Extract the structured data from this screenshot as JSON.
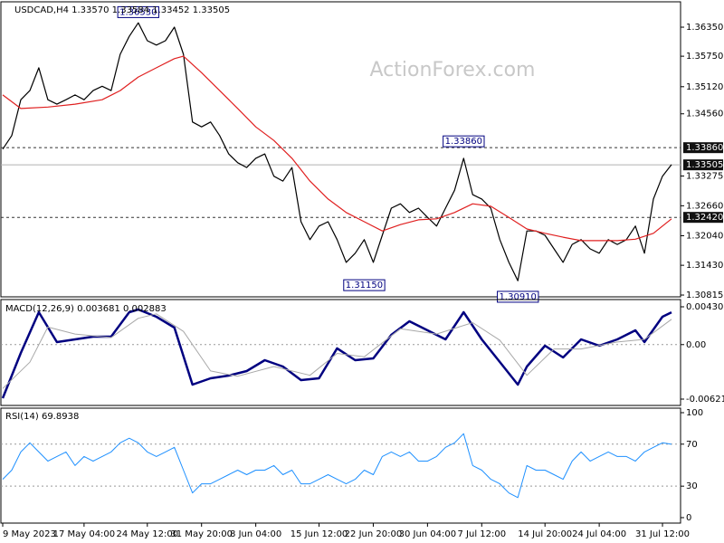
{
  "chart_data": [
    {
      "type": "line",
      "title": "USDCAD,H4 1.33570 1.33584 1.33452 1.33505",
      "watermark": "ActionForex.com",
      "xlim": [
        -0.2,
        75
      ],
      "ylim": [
        1.30778,
        1.36874
      ],
      "yticks": [
        {
          "value": 1.3635,
          "label": "1.36350"
        },
        {
          "value": 1.3575,
          "label": "1.35750"
        },
        {
          "value": 1.3512,
          "label": "1.35120"
        },
        {
          "value": 1.3456,
          "label": "1.34560"
        },
        {
          "value": 1.33275,
          "label": "1.33275"
        },
        {
          "value": 1.3266,
          "label": "1.32660"
        },
        {
          "value": 1.3204,
          "label": "1.32040"
        },
        {
          "value": 1.3143,
          "label": "1.31430"
        },
        {
          "value": 1.30815,
          "label": "1.30815"
        }
      ],
      "hlines": [
        {
          "value": 1.3386,
          "label": "1.33860",
          "style": "dashed"
        },
        {
          "value": 1.3242,
          "label": "1.32420",
          "style": "dashed"
        },
        {
          "value": 1.33505,
          "label": "1.33505",
          "style": "solid"
        }
      ],
      "annotations": [
        {
          "x": 15,
          "value": 1.3653,
          "label": "1.36530",
          "position": "above"
        },
        {
          "x": 51,
          "value": 1.3386,
          "label": "1.33860",
          "position": "above"
        },
        {
          "x": 40,
          "value": 1.3115,
          "label": "1.31150",
          "position": "below"
        },
        {
          "x": 57,
          "value": 1.3091,
          "label": "1.30910",
          "position": "below"
        }
      ],
      "series": [
        {
          "color": "#000000",
          "x": [
            0,
            1,
            2,
            3,
            4,
            5,
            6,
            7,
            8,
            9,
            10,
            11,
            12,
            13,
            14,
            15,
            16,
            17,
            18,
            19,
            20,
            21,
            22,
            23,
            24,
            25,
            26,
            27,
            28,
            29,
            30,
            31,
            32,
            33,
            34,
            35,
            36,
            37,
            38,
            39,
            40,
            41,
            42,
            43,
            44,
            45,
            46,
            47,
            48,
            49,
            50,
            51,
            52,
            53,
            54,
            55,
            56,
            57,
            58,
            59,
            60,
            61,
            62,
            63,
            64,
            65,
            66,
            67,
            68,
            69,
            70,
            71,
            72,
            73,
            74
          ],
          "values": [
            1.3383,
            1.3411,
            1.3485,
            1.3504,
            1.3551,
            1.3485,
            1.3476,
            1.3485,
            1.3495,
            1.3485,
            1.3504,
            1.3513,
            1.3504,
            1.3579,
            1.3616,
            1.3644,
            1.3607,
            1.3598,
            1.3607,
            1.3635,
            1.3579,
            1.3439,
            1.3429,
            1.3439,
            1.3411,
            1.3373,
            1.3355,
            1.3345,
            1.3364,
            1.3373,
            1.3327,
            1.3317,
            1.3345,
            1.3233,
            1.3196,
            1.3224,
            1.3233,
            1.3196,
            1.3149,
            1.3168,
            1.3196,
            1.3149,
            1.3205,
            1.3261,
            1.327,
            1.3252,
            1.3261,
            1.3242,
            1.3224,
            1.3261,
            1.3298,
            1.3364,
            1.3289,
            1.328,
            1.3261,
            1.3196,
            1.3149,
            1.3111,
            1.3214,
            1.3214,
            1.3205,
            1.3177,
            1.3149,
            1.3186,
            1.3196,
            1.3177,
            1.3168,
            1.3196,
            1.3186,
            1.3196,
            1.3224,
            1.3168,
            1.328,
            1.3327,
            1.3351
          ]
        },
        {
          "color": "#e02020",
          "x": [
            0,
            2,
            5,
            8,
            11,
            13,
            15,
            17,
            19,
            20,
            22,
            24,
            26,
            28,
            30,
            32,
            34,
            36,
            38,
            40,
            42,
            44,
            46,
            48,
            50,
            52,
            54,
            56,
            58,
            60,
            62,
            64,
            66,
            68,
            70,
            72,
            74
          ],
          "values": [
            1.3495,
            1.3467,
            1.347,
            1.3476,
            1.3485,
            1.3504,
            1.3532,
            1.3551,
            1.357,
            1.3575,
            1.3541,
            1.3504,
            1.3467,
            1.3429,
            1.3401,
            1.3364,
            1.3317,
            1.328,
            1.3252,
            1.3233,
            1.3214,
            1.3227,
            1.3237,
            1.3239,
            1.3252,
            1.327,
            1.3265,
            1.3242,
            1.3218,
            1.3209,
            1.3201,
            1.3194,
            1.3194,
            1.3194,
            1.3197,
            1.3209,
            1.3239
          ]
        }
      ]
    },
    {
      "type": "line",
      "title": "MACD(12,26,9) 0.003681 0.002883",
      "xlim": [
        -0.2,
        75
      ],
      "ylim": [
        -0.006932,
        0.005132
      ],
      "yticks": [
        {
          "value": 0.004307,
          "label": "0.004307"
        },
        {
          "value": 0,
          "label": "0.00"
        },
        {
          "value": -0.00621,
          "label": "-0.00621"
        }
      ],
      "levels": [
        0
      ],
      "series": [
        {
          "color": "#000080",
          "width": 2.5,
          "x": [
            0,
            2,
            4,
            6,
            8,
            10,
            12,
            14,
            15,
            17,
            19,
            21,
            23,
            25,
            27,
            29,
            31,
            33,
            35,
            37,
            39,
            41,
            43,
            45,
            47,
            49,
            51,
            53,
            55,
            57,
            58,
            60,
            62,
            64,
            66,
            68,
            70,
            71,
            73,
            74
          ],
          "values": [
            -0.00611,
            -0.00095,
            0.00369,
            0.00029,
            0.0006,
            0.0009,
            0.0009,
            0.00369,
            0.004,
            0.00317,
            0.00194,
            -0.00456,
            -0.00384,
            -0.00353,
            -0.00301,
            -0.00178,
            -0.0025,
            -0.00404,
            -0.00384,
            -0.00043,
            -0.00178,
            -0.00157,
            0.00111,
            0.00266,
            0.00163,
            0.0006,
            0.00369,
            0.0006,
            -0.00198,
            -0.00456,
            -0.0025,
            -0.00013,
            -0.00147,
            0.0006,
            -0.00013,
            0.0006,
            0.00163,
            0.00029,
            0.00317,
            0.00368
          ]
        },
        {
          "color": "#a8a8a8",
          "width": 1,
          "x": [
            0,
            3,
            5,
            8,
            12,
            15,
            17,
            20,
            23,
            26,
            30,
            34,
            37,
            40,
            44,
            48,
            52,
            55,
            58,
            61,
            64,
            68,
            71,
            74
          ],
          "values": [
            -0.005,
            -0.002,
            0.002,
            0.0012,
            0.0008,
            0.003,
            0.0035,
            0.0015,
            -0.003,
            -0.0036,
            -0.0025,
            -0.0035,
            -0.001,
            -0.0014,
            0.0018,
            0.0012,
            0.0025,
            0.0005,
            -0.0035,
            -0.0005,
            -0.0005,
            0.0003,
            0.0006,
            0.00288
          ]
        }
      ]
    },
    {
      "type": "line",
      "title": "RSI(14) 69.8938",
      "xlim": [
        -0.2,
        75
      ],
      "ylim": [
        -5.2,
        104.3
      ],
      "yticks": [
        100,
        70,
        30,
        0
      ],
      "levels": [
        70,
        30
      ],
      "xticks": [
        {
          "value": 0,
          "label": "9 May 2023"
        },
        {
          "value": 9,
          "label": "17 May 04:00"
        },
        {
          "value": 16,
          "label": "24 May 12:00"
        },
        {
          "value": 22,
          "label": "31 May 20:00"
        },
        {
          "value": 28,
          "label": "8 Jun 04:00"
        },
        {
          "value": 35,
          "label": "15 Jun 12:00"
        },
        {
          "value": 41,
          "label": "22 Jun 20:00"
        },
        {
          "value": 47,
          "label": "30 Jun 04:00"
        },
        {
          "value": 53,
          "label": "7 Jul 12:00"
        },
        {
          "value": 60,
          "label": "14 Jul 20:00"
        },
        {
          "value": 66,
          "label": "24 Jul 04:00"
        },
        {
          "value": 73,
          "label": "31 Jul 12:00"
        }
      ],
      "series": [
        {
          "color": "#1e90ff",
          "width": 1,
          "x": [
            0,
            1,
            2,
            3,
            4,
            5,
            6,
            7,
            8,
            9,
            10,
            11,
            12,
            13,
            14,
            15,
            16,
            17,
            18,
            19,
            20,
            21,
            22,
            23,
            24,
            25,
            26,
            27,
            28,
            29,
            30,
            31,
            32,
            33,
            34,
            35,
            36,
            37,
            38,
            39,
            40,
            41,
            42,
            43,
            44,
            45,
            46,
            47,
            48,
            49,
            50,
            51,
            52,
            53,
            54,
            55,
            56,
            57,
            58,
            59,
            60,
            61,
            62,
            63,
            64,
            65,
            66,
            67,
            68,
            69,
            70,
            71,
            72,
            73,
            74
          ],
          "values": [
            36.5,
            45.2,
            62.6,
            71.3,
            62.6,
            53.9,
            58.3,
            62.6,
            49.6,
            58.3,
            53.9,
            58.3,
            62.6,
            71.3,
            75.7,
            71.3,
            62.6,
            58.3,
            62.6,
            67.0,
            45.2,
            23.5,
            32.2,
            32.2,
            36.5,
            40.9,
            45.2,
            40.9,
            45.2,
            45.2,
            49.6,
            40.9,
            45.2,
            32.2,
            32.2,
            36.5,
            40.9,
            36.5,
            32.2,
            36.5,
            45.2,
            40.9,
            58.3,
            62.6,
            58.3,
            62.6,
            53.9,
            53.9,
            58.3,
            67.0,
            71.3,
            80.0,
            49.6,
            45.2,
            36.5,
            32.2,
            23.5,
            19.1,
            49.6,
            45.2,
            45.2,
            40.9,
            36.5,
            53.9,
            62.6,
            53.9,
            58.3,
            62.6,
            58.3,
            58.3,
            53.9,
            62.6,
            67.0,
            71.3,
            69.9
          ]
        }
      ]
    }
  ]
}
